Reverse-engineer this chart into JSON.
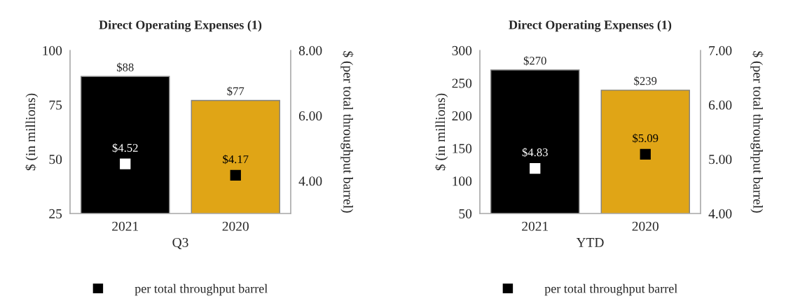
{
  "chart_data": [
    {
      "type": "bar",
      "title": "Direct Operating Expenses (1)",
      "xlabel": "Q3",
      "ylabel": "$ (in millions)",
      "y2label": "$ (per total throughput barrel)",
      "categories": [
        "2021",
        "2020"
      ],
      "series": [
        {
          "colors": [
            "#000000",
            "#e0a516"
          ],
          "values": [
            88,
            77
          ],
          "value_labels": [
            "$88",
            "$77"
          ]
        },
        {
          "type": "scatter",
          "name": "per total throughput barrel",
          "axis": "y2",
          "marker": "square",
          "color": "#000000",
          "colors": [
            "#ffffff",
            "#000000"
          ],
          "values": [
            4.52,
            4.17
          ],
          "value_labels": [
            "$4.52",
            "$4.17"
          ]
        }
      ],
      "ylim": [
        25,
        100
      ],
      "yticks": [
        25,
        50,
        75,
        100
      ],
      "y2lim": [
        3,
        8
      ],
      "y2ticks": [
        {
          "value": 4,
          "label": "4.00"
        },
        {
          "value": 6,
          "label": "6.00"
        },
        {
          "value": 8,
          "label": "8.00"
        }
      ],
      "legend": "bottom",
      "grid": false
    },
    {
      "type": "bar",
      "title": "Direct Operating Expenses (1)",
      "xlabel": "YTD",
      "ylabel": "$ (in millions)",
      "y2label": "$ (per total throughput barrel)",
      "categories": [
        "2021",
        "2020"
      ],
      "series": [
        {
          "colors": [
            "#000000",
            "#e0a516"
          ],
          "values": [
            270,
            239
          ],
          "value_labels": [
            "$270",
            "$239"
          ]
        },
        {
          "type": "scatter",
          "name": "per total throughput barrel",
          "axis": "y2",
          "marker": "square",
          "color": "#000000",
          "colors": [
            "#ffffff",
            "#000000"
          ],
          "values": [
            4.83,
            5.09
          ],
          "value_labels": [
            "$4.83",
            "$5.09"
          ]
        }
      ],
      "ylim": [
        50,
        300
      ],
      "yticks": [
        50,
        100,
        150,
        200,
        250,
        300
      ],
      "y2lim": [
        4,
        7
      ],
      "y2ticks": [
        {
          "value": 4,
          "label": "4.00"
        },
        {
          "value": 5,
          "label": "5.00"
        },
        {
          "value": 6,
          "label": "6.00"
        },
        {
          "value": 7,
          "label": "7.00"
        }
      ],
      "legend": "bottom",
      "grid": false
    }
  ]
}
